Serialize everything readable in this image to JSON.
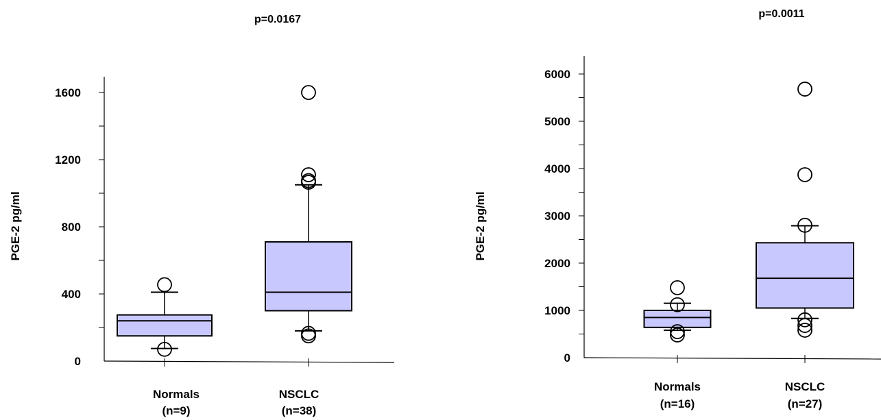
{
  "chart_data": [
    {
      "type": "box",
      "title": "p=0.0167",
      "ylabel": "PGE-2 pg/ml",
      "xlabel": "",
      "ylim": [
        0,
        1700
      ],
      "yticks": [
        "0",
        "400",
        "800",
        "1200",
        "1600"
      ],
      "categories": [
        {
          "name": "Normals",
          "n": "(n=9)"
        },
        {
          "name": "NSCLC",
          "n": "(n=38)"
        }
      ],
      "boxes": [
        {
          "whisker_low": 75,
          "q1": 150,
          "median": 240,
          "q3": 275,
          "whisker_high": 410,
          "outliers": [
            70,
            455
          ]
        },
        {
          "whisker_low": 180,
          "q1": 300,
          "median": 410,
          "q3": 710,
          "whisker_high": 1050,
          "outliers": [
            150,
            165,
            1065,
            1075,
            1110,
            1600
          ]
        }
      ],
      "grid": false
    },
    {
      "type": "box",
      "title": "p=0.0011",
      "ylabel": "PGE-2 pg/ml",
      "xlabel": "",
      "ylim": [
        0,
        6300
      ],
      "yticks": [
        "0",
        "1000",
        "2000",
        "3000",
        "4000",
        "5000",
        "6000"
      ],
      "categories": [
        {
          "name": "Normals",
          "n": "(n=16)"
        },
        {
          "name": "NSCLC",
          "n": "(n=27)"
        }
      ],
      "boxes": [
        {
          "whisker_low": 580,
          "q1": 640,
          "median": 850,
          "q3": 1000,
          "whisker_high": 1150,
          "outliers": [
            480,
            550,
            1120,
            1480
          ]
        },
        {
          "whisker_low": 830,
          "q1": 1050,
          "median": 1680,
          "q3": 2430,
          "whisker_high": 2790,
          "outliers": [
            580,
            680,
            800,
            2800,
            3870,
            5680
          ]
        }
      ],
      "grid": false
    }
  ],
  "colors": {
    "box_fill": "#c8c8ff",
    "stroke": "#000000"
  }
}
